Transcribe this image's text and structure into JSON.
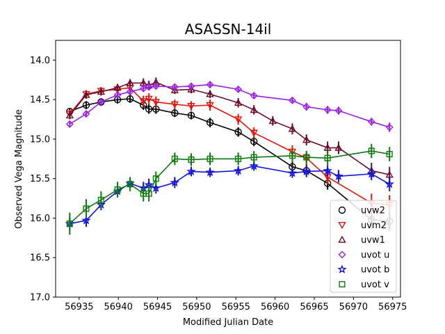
{
  "chart_data": {
    "type": "scatter",
    "title": "ASASSN-14il",
    "xlabel": "Modified Julian Date",
    "ylabel": "Observed Vega Magnitude",
    "xlim": [
      56932,
      56976
    ],
    "ylim": [
      17.0,
      13.75
    ],
    "y_inverted": true,
    "grid": false,
    "legend_position": "lower right",
    "x_ticks": [
      {
        "value": 56935,
        "label": "56935"
      },
      {
        "value": 56940,
        "label": "56940"
      },
      {
        "value": 56945,
        "label": "56945"
      },
      {
        "value": 56950,
        "label": "56950"
      },
      {
        "value": 56955,
        "label": "56955"
      },
      {
        "value": 56960,
        "label": "56960"
      },
      {
        "value": 56965,
        "label": "56965"
      },
      {
        "value": 56970,
        "label": "56970"
      },
      {
        "value": 56975,
        "label": "56975"
      }
    ],
    "y_ticks": [
      {
        "value": 14.0,
        "label": "14.0"
      },
      {
        "value": 14.5,
        "label": "14.5"
      },
      {
        "value": 15.0,
        "label": "15.0"
      },
      {
        "value": 15.5,
        "label": "15.5"
      },
      {
        "value": 16.0,
        "label": "16.0"
      },
      {
        "value": 16.5,
        "label": "16.5"
      },
      {
        "value": 17.0,
        "label": "17.0"
      }
    ],
    "series": [
      {
        "name": "uvw2",
        "color": "#000000",
        "marker": "circle",
        "x": [
          56933.8,
          56935.9,
          56937.8,
          56939.9,
          56941.5,
          56943.2,
          56943.9,
          56944.8,
          56947.2,
          56949.3,
          56951.7,
          56955.3,
          56957.3,
          56962.2,
          56964.0,
          56966.7,
          56972.3,
          56974.6
        ],
        "y": [
          14.65,
          14.57,
          14.53,
          14.5,
          14.49,
          14.57,
          14.62,
          14.62,
          14.67,
          14.7,
          14.79,
          14.91,
          15.03,
          15.35,
          15.4,
          15.56,
          16.02,
          16.04
        ],
        "err": [
          0.04,
          0.05,
          0.05,
          0.05,
          0.05,
          0.06,
          0.06,
          0.06,
          0.05,
          0.05,
          0.06,
          0.06,
          0.06,
          0.07,
          0.08,
          0.08,
          0.12,
          0.12
        ]
      },
      {
        "name": "uvm2",
        "color": "#e3120b",
        "marker": "triangle-down",
        "x": [
          56933.8,
          56935.9,
          56937.8,
          56939.9,
          56941.5,
          56943.2,
          56943.9,
          56944.8,
          56947.2,
          56949.3,
          56951.7,
          56955.3,
          56957.3,
          56962.2,
          56964.0,
          56966.7,
          56972.3,
          56974.6
        ],
        "y": [
          14.68,
          14.43,
          14.39,
          14.37,
          14.35,
          14.52,
          14.49,
          14.53,
          14.56,
          14.58,
          14.57,
          14.75,
          14.92,
          15.16,
          15.24,
          15.48,
          15.81,
          15.83
        ],
        "err": [
          0.05,
          0.05,
          0.05,
          0.05,
          0.06,
          0.07,
          0.07,
          0.07,
          0.06,
          0.06,
          0.07,
          0.07,
          0.07,
          0.08,
          0.09,
          0.09,
          0.12,
          0.12
        ]
      },
      {
        "name": "uvw1",
        "color": "#6b0b2e",
        "marker": "triangle-up",
        "x": [
          56933.8,
          56935.9,
          56937.8,
          56939.9,
          56941.5,
          56943.2,
          56943.9,
          56944.8,
          56947.2,
          56949.3,
          56951.7,
          56955.3,
          56957.3,
          56959.7,
          56962.2,
          56964.0,
          56966.7,
          56968.1,
          56972.3,
          56974.6
        ],
        "y": [
          14.7,
          14.44,
          14.4,
          14.35,
          14.29,
          14.29,
          14.32,
          14.28,
          14.38,
          14.37,
          14.43,
          14.54,
          14.63,
          14.77,
          14.87,
          15.01,
          15.11,
          15.11,
          15.4,
          15.45
        ],
        "err": [
          0.05,
          0.05,
          0.05,
          0.05,
          0.05,
          0.06,
          0.06,
          0.06,
          0.05,
          0.05,
          0.05,
          0.06,
          0.06,
          0.06,
          0.07,
          0.07,
          0.08,
          0.08,
          0.1,
          0.1
        ]
      },
      {
        "name": "uvot u",
        "color": "#9b1fe8",
        "marker": "diamond",
        "x": [
          56933.8,
          56935.9,
          56937.8,
          56939.9,
          56941.5,
          56943.2,
          56943.9,
          56944.8,
          56947.2,
          56949.3,
          56951.7,
          56955.3,
          56957.3,
          56962.2,
          56964.0,
          56966.7,
          56968.1,
          56972.3,
          56974.6
        ],
        "y": [
          14.81,
          14.68,
          14.53,
          14.44,
          14.4,
          14.36,
          14.34,
          14.33,
          14.34,
          14.33,
          14.31,
          14.37,
          14.45,
          14.51,
          14.59,
          14.63,
          14.64,
          14.78,
          14.85
        ],
        "err": [
          0.04,
          0.04,
          0.04,
          0.04,
          0.04,
          0.04,
          0.04,
          0.04,
          0.04,
          0.04,
          0.04,
          0.04,
          0.04,
          0.04,
          0.05,
          0.05,
          0.05,
          0.05,
          0.06
        ]
      },
      {
        "name": "uvot b",
        "color": "#1010e0",
        "marker": "star",
        "x": [
          56933.8,
          56935.9,
          56937.8,
          56939.9,
          56941.5,
          56943.2,
          56943.9,
          56944.8,
          56947.2,
          56949.3,
          56951.7,
          56955.3,
          56957.3,
          56962.2,
          56964.0,
          56966.7,
          56968.1,
          56972.3,
          56974.6
        ],
        "y": [
          16.07,
          16.03,
          15.83,
          15.66,
          15.56,
          15.62,
          15.58,
          15.62,
          15.55,
          15.41,
          15.42,
          15.4,
          15.34,
          15.43,
          15.41,
          15.4,
          15.47,
          15.44,
          15.57
        ],
        "err": [
          0.08,
          0.08,
          0.07,
          0.07,
          0.07,
          0.08,
          0.08,
          0.07,
          0.07,
          0.06,
          0.06,
          0.06,
          0.06,
          0.06,
          0.07,
          0.07,
          0.08,
          0.08,
          0.09
        ]
      },
      {
        "name": "uvot v",
        "color": "#0a7a0a",
        "marker": "square",
        "x": [
          56933.8,
          56935.9,
          56937.8,
          56939.9,
          56941.5,
          56943.2,
          56943.9,
          56944.8,
          56947.2,
          56949.3,
          56951.7,
          56955.3,
          56957.3,
          56962.2,
          56964.0,
          56966.7,
          56972.3,
          56974.6
        ],
        "y": [
          16.07,
          15.88,
          15.77,
          15.64,
          15.57,
          15.69,
          15.69,
          15.5,
          15.25,
          15.26,
          15.25,
          15.25,
          15.23,
          15.21,
          15.23,
          15.24,
          15.15,
          15.19
        ],
        "err": [
          0.14,
          0.12,
          0.11,
          0.1,
          0.09,
          0.1,
          0.1,
          0.09,
          0.08,
          0.08,
          0.08,
          0.08,
          0.08,
          0.08,
          0.08,
          0.09,
          0.09,
          0.09
        ]
      }
    ]
  }
}
